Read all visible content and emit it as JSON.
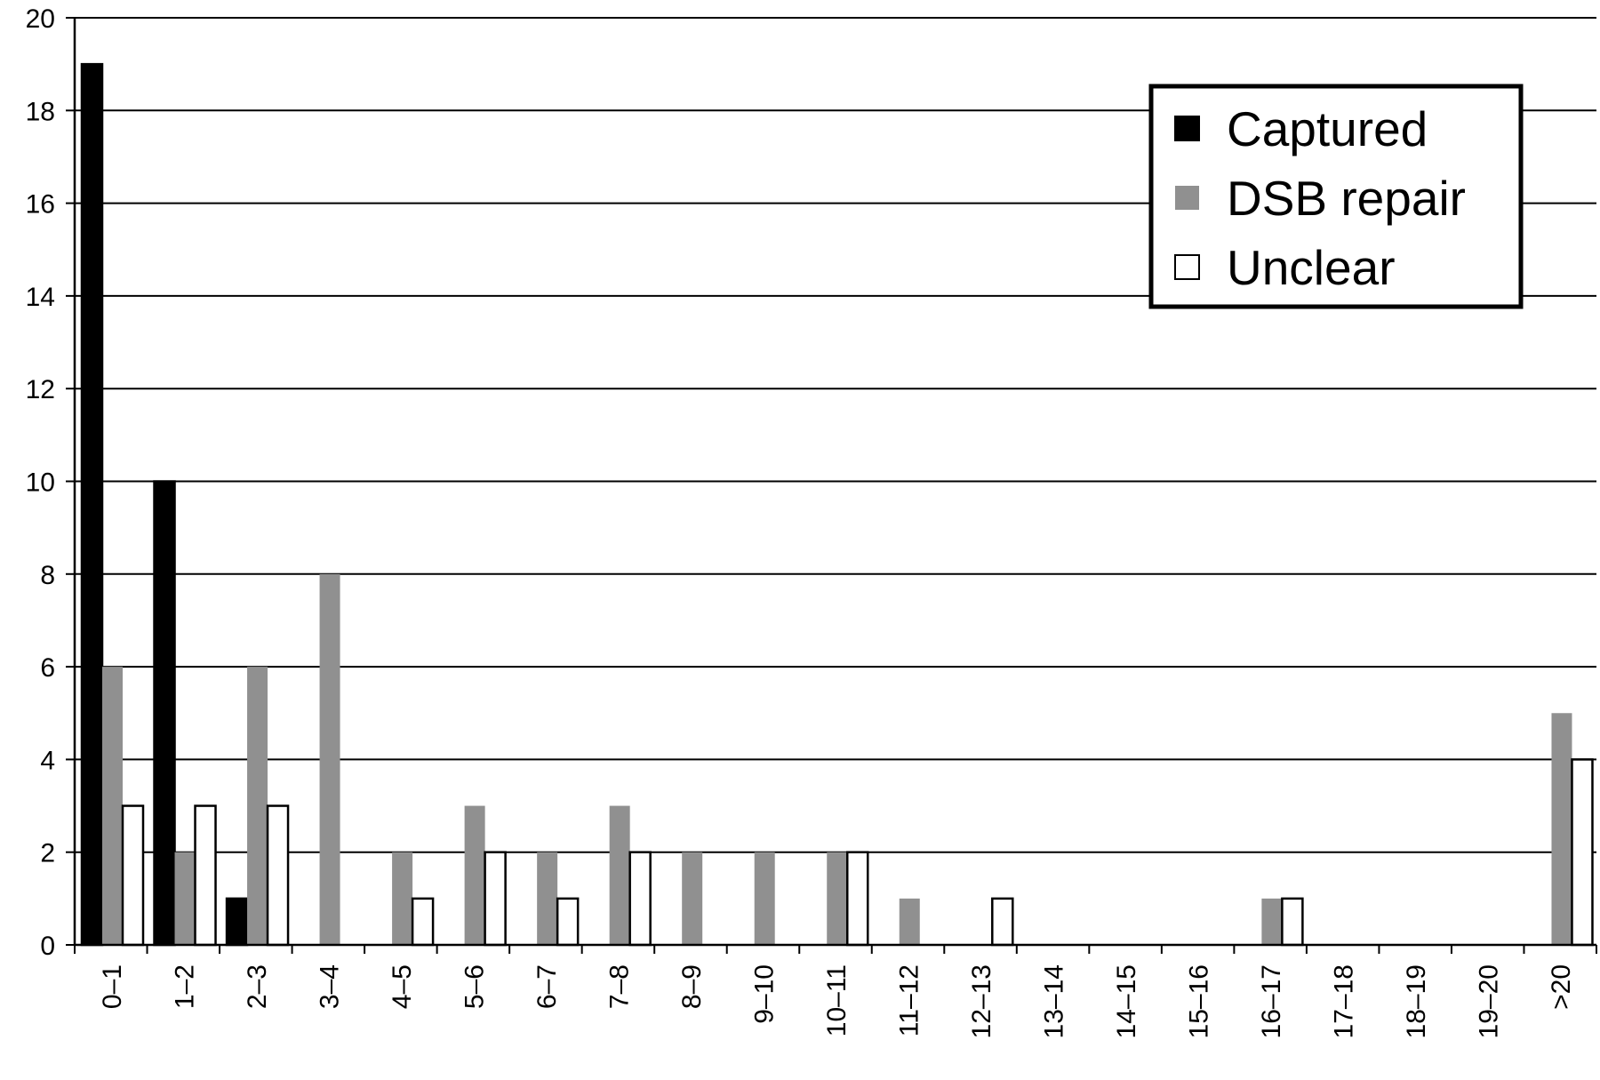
{
  "chart_data": {
    "type": "bar",
    "categories": [
      "0–1",
      "1–2",
      "2–3",
      "3–4",
      "4–5",
      "5–6",
      "6–7",
      "7–8",
      "8–9",
      "9–10",
      "10–11",
      "11–12",
      "12–13",
      "13–14",
      "14–15",
      "15–16",
      "16–17",
      "17–18",
      "18–19",
      "19–20",
      ">20"
    ],
    "series": [
      {
        "name": "Captured",
        "color": "#000000",
        "values": [
          19,
          10,
          1,
          0,
          0,
          0,
          0,
          0,
          0,
          0,
          0,
          0,
          0,
          0,
          0,
          0,
          0,
          0,
          0,
          0,
          0
        ]
      },
      {
        "name": "DSB repair",
        "color": "#909090",
        "values": [
          6,
          2,
          6,
          8,
          2,
          3,
          2,
          3,
          2,
          2,
          2,
          1,
          0,
          0,
          0,
          0,
          1,
          0,
          0,
          0,
          5
        ]
      },
      {
        "name": "Unclear",
        "color": "#ffffff",
        "values": [
          3,
          3,
          3,
          0,
          1,
          2,
          1,
          2,
          0,
          0,
          2,
          0,
          1,
          0,
          0,
          0,
          1,
          0,
          0,
          0,
          4
        ]
      }
    ],
    "y_ticks": [
      "0",
      "2",
      "4",
      "6",
      "8",
      "10",
      "12",
      "14",
      "16",
      "18",
      "20"
    ],
    "ylim": [
      0,
      20
    ],
    "grid": true,
    "legend": "top-right"
  }
}
